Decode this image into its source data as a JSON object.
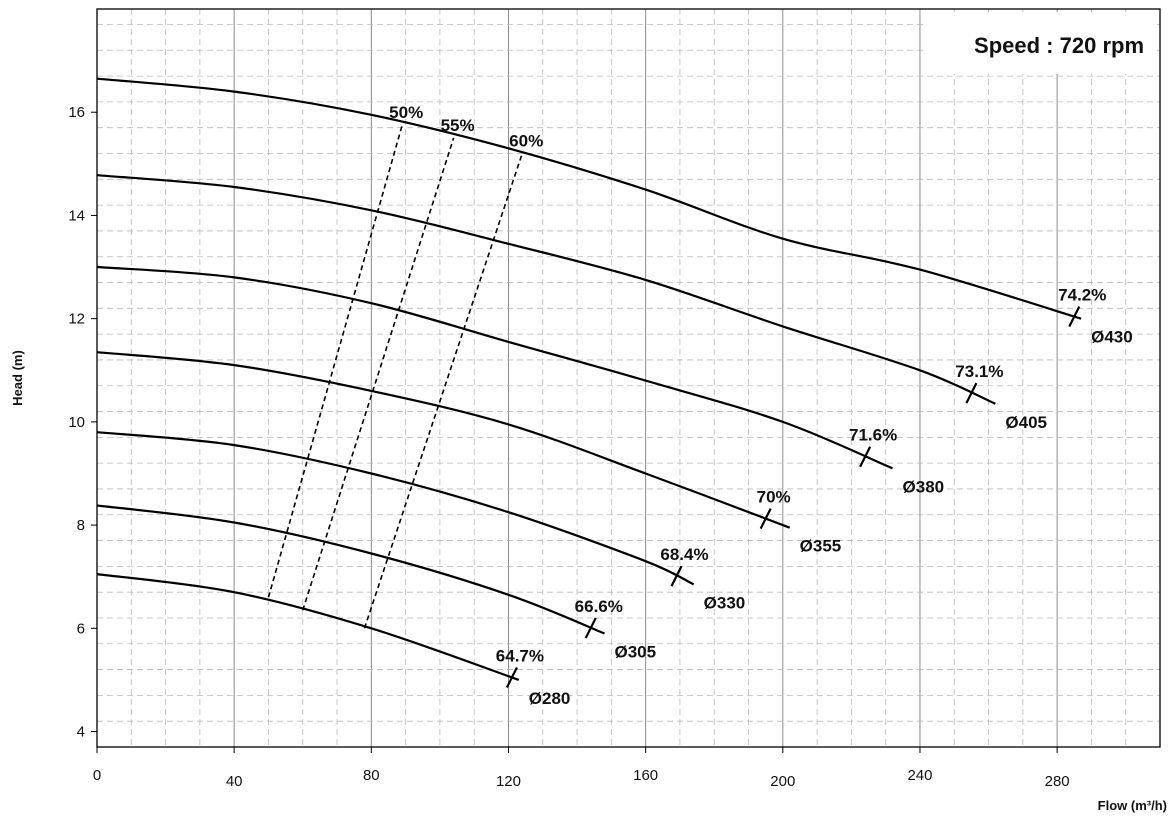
{
  "chart_data": {
    "type": "line",
    "title": "",
    "annotation": "Speed : 720 rpm",
    "xlabel": "Flow (m³/h)",
    "ylabel": "Head (m)",
    "xlim": [
      0,
      310
    ],
    "ylim": [
      3.7,
      18
    ],
    "x_ticks": [
      0,
      40,
      80,
      120,
      160,
      200,
      240,
      280
    ],
    "y_ticks": [
      4,
      6,
      8,
      10,
      12,
      14,
      16
    ],
    "grid": true,
    "series": [
      {
        "name": "Ø430",
        "x": [
          0,
          40,
          80,
          120,
          160,
          200,
          240,
          287
        ],
        "y": [
          16.65,
          16.4,
          15.95,
          15.3,
          14.5,
          13.55,
          12.95,
          12.0
        ],
        "end_efficiency": "74.2%",
        "end_mark": 285
      },
      {
        "name": "Ø405",
        "x": [
          0,
          40,
          80,
          120,
          160,
          200,
          240,
          262
        ],
        "y": [
          14.78,
          14.55,
          14.1,
          13.45,
          12.75,
          11.85,
          11.0,
          10.35
        ],
        "end_efficiency": "73.1%",
        "end_mark": 255
      },
      {
        "name": "Ø380",
        "x": [
          0,
          40,
          80,
          120,
          160,
          200,
          232
        ],
        "y": [
          13.0,
          12.8,
          12.3,
          11.55,
          10.8,
          10.0,
          9.1
        ],
        "end_efficiency": "71.6%",
        "end_mark": 224
      },
      {
        "name": "Ø355",
        "x": [
          0,
          40,
          80,
          120,
          160,
          202
        ],
        "y": [
          11.35,
          11.1,
          10.6,
          9.95,
          9.0,
          7.95
        ],
        "end_efficiency": "70%",
        "end_mark": 195
      },
      {
        "name": "Ø330",
        "x": [
          0,
          40,
          80,
          120,
          160,
          174
        ],
        "y": [
          9.8,
          9.55,
          9.0,
          8.25,
          7.3,
          6.85
        ],
        "end_efficiency": "68.4%",
        "end_mark": 169
      },
      {
        "name": "Ø305",
        "x": [
          0,
          40,
          80,
          120,
          148
        ],
        "y": [
          8.38,
          8.05,
          7.45,
          6.65,
          5.9
        ],
        "end_efficiency": "66.6%",
        "end_mark": 144
      },
      {
        "name": "Ø280",
        "x": [
          0,
          40,
          80,
          123
        ],
        "y": [
          7.05,
          6.7,
          6.0,
          5.0
        ],
        "end_efficiency": "64.7%",
        "end_mark": 121
      }
    ],
    "efficiency_lines": [
      {
        "name": "50%",
        "x": [
          50,
          89
        ],
        "y": [
          6.6,
          15.75
        ]
      },
      {
        "name": "55%",
        "x": [
          60,
          104
        ],
        "y": [
          6.35,
          15.5
        ]
      },
      {
        "name": "60%",
        "x": [
          78,
          124
        ],
        "y": [
          6.0,
          15.2
        ]
      }
    ]
  }
}
